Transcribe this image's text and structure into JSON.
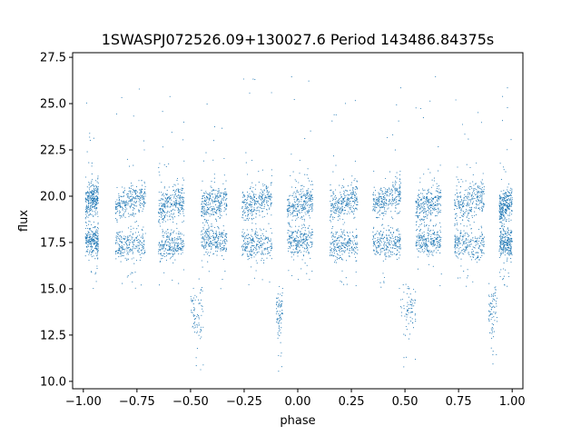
{
  "chart_data": {
    "type": "scatter",
    "title": "1SWASPJ072526.09+130027.6 Period 143486.84375s",
    "xlabel": "phase",
    "ylabel": "flux",
    "xlim": [
      -1.05,
      1.05
    ],
    "ylim": [
      9.6,
      27.75
    ],
    "xticks": [
      -1.0,
      -0.75,
      -0.5,
      -0.25,
      0.0,
      0.25,
      0.5,
      0.75,
      1.0
    ],
    "xtick_labels": [
      "−1.00",
      "−0.75",
      "−0.50",
      "−0.25",
      "0.00",
      "0.25",
      "0.50",
      "0.75",
      "1.00"
    ],
    "yticks": [
      10.0,
      12.5,
      15.0,
      17.5,
      20.0,
      22.5,
      25.0,
      27.5
    ],
    "ytick_labels": [
      "10.0",
      "12.5",
      "15.0",
      "17.5",
      "20.0",
      "22.5",
      "25.0",
      "27.5"
    ],
    "grid": false,
    "marker_color": "#1f77b4",
    "clusters": [
      {
        "x_range": [
          -0.99,
          -0.93
        ],
        "upper": 19.8,
        "lower": 17.6
      },
      {
        "x_range": [
          -0.85,
          -0.71
        ],
        "upper": 19.7,
        "lower": 17.4
      },
      {
        "x_range": [
          -0.65,
          -0.53
        ],
        "upper": 19.6,
        "lower": 17.4
      },
      {
        "x_range": [
          -0.45,
          -0.33
        ],
        "upper": 19.6,
        "lower": 17.6
      },
      {
        "x_range": [
          -0.26,
          -0.12
        ],
        "upper": 19.7,
        "lower": 17.4
      },
      {
        "x_range": [
          -0.05,
          0.07
        ],
        "upper": 19.6,
        "lower": 17.6
      },
      {
        "x_range": [
          0.15,
          0.28
        ],
        "upper": 19.7,
        "lower": 17.4
      },
      {
        "x_range": [
          0.35,
          0.48
        ],
        "upper": 19.8,
        "lower": 17.5
      },
      {
        "x_range": [
          0.55,
          0.67
        ],
        "upper": 19.6,
        "lower": 17.6
      },
      {
        "x_range": [
          0.73,
          0.87
        ],
        "upper": 19.7,
        "lower": 17.4
      },
      {
        "x_range": [
          0.94,
          1.0
        ],
        "upper": 19.5,
        "lower": 17.5
      }
    ],
    "low_groups": [
      {
        "x_range": [
          -0.5,
          -0.44
        ],
        "center": 13.9
      },
      {
        "x_range": [
          -0.1,
          -0.07
        ],
        "center": 13.8
      },
      {
        "x_range": [
          0.48,
          0.55
        ],
        "center": 13.9
      },
      {
        "x_range": [
          0.89,
          0.93
        ],
        "center": 13.8
      }
    ]
  }
}
